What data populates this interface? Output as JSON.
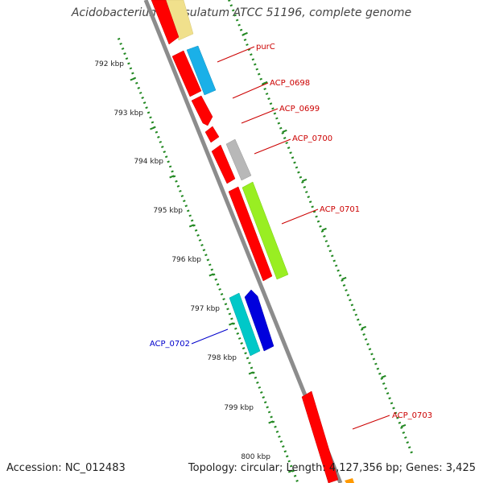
{
  "title": "Acidobacterium capsulatum ATCC 51196, complete genome",
  "footer": {
    "accession": "Accession: NC_012483",
    "summary": "Topology: circular; Length: 4,127,356 bp; Genes: 3,425"
  },
  "scale_labels": [
    "792 kbp",
    "793 kbp",
    "794 kbp",
    "795 kbp",
    "796 kbp",
    "797 kbp",
    "798 kbp",
    "799 kbp",
    "800 kbp"
  ],
  "gene_labels": [
    {
      "text": "purC",
      "color": "#cc0000"
    },
    {
      "text": "ACP_0698",
      "color": "#cc0000"
    },
    {
      "text": "ACP_0699",
      "color": "#cc0000"
    },
    {
      "text": "ACP_0700",
      "color": "#cc0000"
    },
    {
      "text": "ACP_0701",
      "color": "#cc0000"
    },
    {
      "text": "ACP_0702",
      "color": "#0000cc"
    },
    {
      "text": "ACP_0703",
      "color": "#cc0000"
    }
  ],
  "colors": {
    "red_gene": "#ff0000",
    "cyan_gene": "#1ab0e8",
    "gray_gene": "#b8b8b8",
    "lime_gene": "#99ee22",
    "teal_gene": "#00c8c8",
    "blue_gene": "#0000dd",
    "yellow_gene": "#f0e08c",
    "orange_gene": "#ff9900",
    "backbone": "#8c8c8c",
    "tick": "#228822"
  }
}
